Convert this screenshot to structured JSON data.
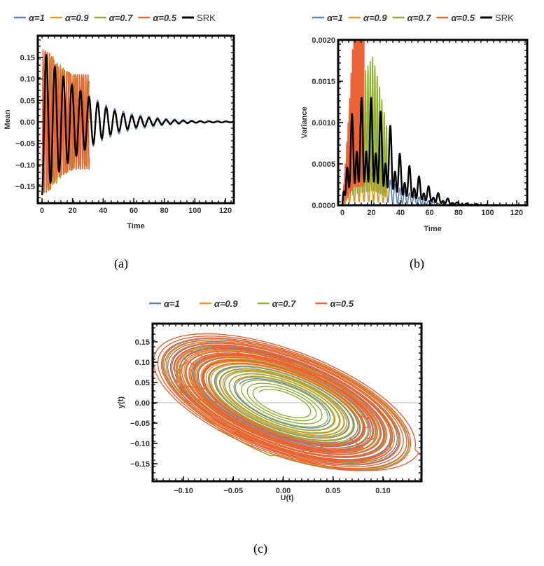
{
  "captions": {
    "a": "(a)",
    "b": "(b)",
    "c": "(c)"
  },
  "colors": {
    "alpha1": "#5e81b5",
    "alpha09": "#e19c24",
    "alpha07": "#8fb032",
    "alpha05": "#eb6235",
    "srk": "#000000"
  },
  "chart_data": [
    {
      "type": "line",
      "xlabel": "Time",
      "ylabel": "Mean",
      "xlim": [
        0,
        125
      ],
      "ylim": [
        -0.19,
        0.19
      ],
      "xticks": [
        "0",
        "20",
        "40",
        "60",
        "80",
        "100",
        "120"
      ],
      "yticks": [
        "-0.15",
        "-0.10",
        "-0.05",
        "0.00",
        "0.05",
        "0.10",
        "0.15"
      ],
      "legend_position": "top",
      "grid": false,
      "series": [
        {
          "name": "α=1",
          "color": "#5e81b5",
          "period": 5.6,
          "envelope": [
            [
              0,
              0.17
            ],
            [
              10,
              0.125
            ],
            [
              20,
              0.09
            ],
            [
              30,
              0.065
            ],
            [
              40,
              0.042
            ],
            [
              50,
              0.028
            ],
            [
              60,
              0.018
            ],
            [
              80,
              0.008
            ],
            [
              100,
              0.003
            ],
            [
              125,
              0.001
            ]
          ]
        },
        {
          "name": "α=0.9",
          "color": "#e19c24",
          "period": 4.8,
          "envelope": [
            [
              0,
              0.17
            ],
            [
              8,
              0.15
            ],
            [
              15,
              0.12
            ],
            [
              25,
              0.105
            ],
            [
              31,
              0.1
            ]
          ]
        },
        {
          "name": "α=0.7",
          "color": "#8fb032",
          "period": 4.0,
          "envelope": [
            [
              0,
              0.17
            ],
            [
              6,
              0.15
            ],
            [
              12,
              0.13
            ],
            [
              20,
              0.11
            ],
            [
              31,
              0.1
            ]
          ]
        },
        {
          "name": "α=0.5",
          "color": "#eb6235",
          "period": 1.4,
          "envelope": [
            [
              0,
              0.17
            ],
            [
              5,
              0.16
            ],
            [
              10,
              0.13
            ],
            [
              20,
              0.11
            ],
            [
              31,
              0.11
            ]
          ]
        },
        {
          "name": "SRK",
          "color": "#000000",
          "period": 5.6,
          "envelope": [
            [
              0,
              0.17
            ],
            [
              10,
              0.12
            ],
            [
              20,
              0.085
            ],
            [
              30,
              0.06
            ],
            [
              40,
              0.036
            ],
            [
              50,
              0.022
            ],
            [
              60,
              0.013
            ],
            [
              80,
              0.005
            ],
            [
              100,
              0.002
            ],
            [
              125,
              0.001
            ]
          ]
        }
      ]
    },
    {
      "type": "line",
      "xlabel": "Time",
      "ylabel": "Variance",
      "xlim": [
        0,
        128
      ],
      "ylim": [
        0,
        0.002
      ],
      "xticks": [
        "0",
        "20",
        "40",
        "60",
        "80",
        "100",
        "120"
      ],
      "yticks": [
        "0.0000",
        "0.0005",
        "0.0010",
        "0.0015",
        "0.0020"
      ],
      "legend_position": "top",
      "grid": false,
      "series": [
        {
          "name": "α=1",
          "color": "#5e81b5",
          "period": 3.3,
          "envelope": [
            [
              0,
              0
            ],
            [
              3,
              0.0003
            ],
            [
              10,
              0.0005
            ],
            [
              20,
              0.00045
            ],
            [
              30,
              0.00035
            ],
            [
              40,
              0.0002
            ],
            [
              50,
              0.00012
            ],
            [
              60,
              5e-05
            ],
            [
              70,
              1e-05
            ],
            [
              128,
              0
            ]
          ]
        },
        {
          "name": "α=0.9",
          "color": "#e19c24",
          "period": 3.3,
          "envelope": [
            [
              0,
              0
            ],
            [
              5,
              0.0004
            ],
            [
              20,
              0.00045
            ],
            [
              31,
              0.00035
            ]
          ]
        },
        {
          "name": "α=0.7",
          "color": "#8fb032",
          "period": 1.6,
          "envelope": [
            [
              0,
              0
            ],
            [
              5,
              0.0012
            ],
            [
              15,
              0.0016
            ],
            [
              21,
              0.0018
            ],
            [
              26,
              0.0014
            ],
            [
              31,
              0.0009
            ]
          ]
        },
        {
          "name": "α=0.5",
          "color": "#eb6235",
          "period": 1.0,
          "envelope": [
            [
              0,
              0
            ],
            [
              4,
              0.001
            ],
            [
              8,
              0.0022
            ],
            [
              15,
              0.0022
            ]
          ]
        },
        {
          "name": "SRK",
          "color": "#000000",
          "period": 3.3,
          "envelope": [
            [
              0,
              0
            ],
            [
              3,
              0.0009
            ],
            [
              10,
              0.0013
            ],
            [
              22,
              0.0013
            ],
            [
              30,
              0.001
            ],
            [
              34,
              0.00095
            ],
            [
              40,
              0.0006
            ],
            [
              50,
              0.0004
            ],
            [
              60,
              0.00022
            ],
            [
              70,
              0.0001
            ],
            [
              80,
              3e-05
            ],
            [
              100,
              5e-06
            ],
            [
              128,
              0
            ]
          ]
        }
      ]
    },
    {
      "type": "line",
      "xlabel": "U(t)",
      "ylabel": "y(t)",
      "xlim": [
        -0.135,
        0.14
      ],
      "ylim": [
        -0.19,
        0.19
      ],
      "xticks": [
        "-0.10",
        "-0.05",
        "0.00",
        "0.05",
        "0.10"
      ],
      "yticks": [
        "-0.15",
        "-0.10",
        "-0.05",
        "0.00",
        "0.05",
        "0.10",
        "0.15"
      ],
      "legend_position": "top",
      "grid": false,
      "series": [
        {
          "name": "α=1",
          "color": "#5e81b5",
          "start": [
            -0.1,
            0.0
          ],
          "amplitude_range": [
            0.135,
            0.045
          ]
        },
        {
          "name": "α=0.9",
          "color": "#e19c24",
          "start": [
            -0.1,
            0.0
          ],
          "amplitude_range": [
            0.135,
            0.05
          ]
        },
        {
          "name": "α=0.7",
          "color": "#8fb032",
          "start": [
            -0.1,
            0.0
          ],
          "amplitude_range": [
            0.135,
            0.025
          ]
        },
        {
          "name": "α=0.5",
          "color": "#eb6235",
          "start": [
            -0.1,
            0.0
          ],
          "amplitude_range": [
            0.137,
            0.07
          ]
        }
      ]
    }
  ]
}
